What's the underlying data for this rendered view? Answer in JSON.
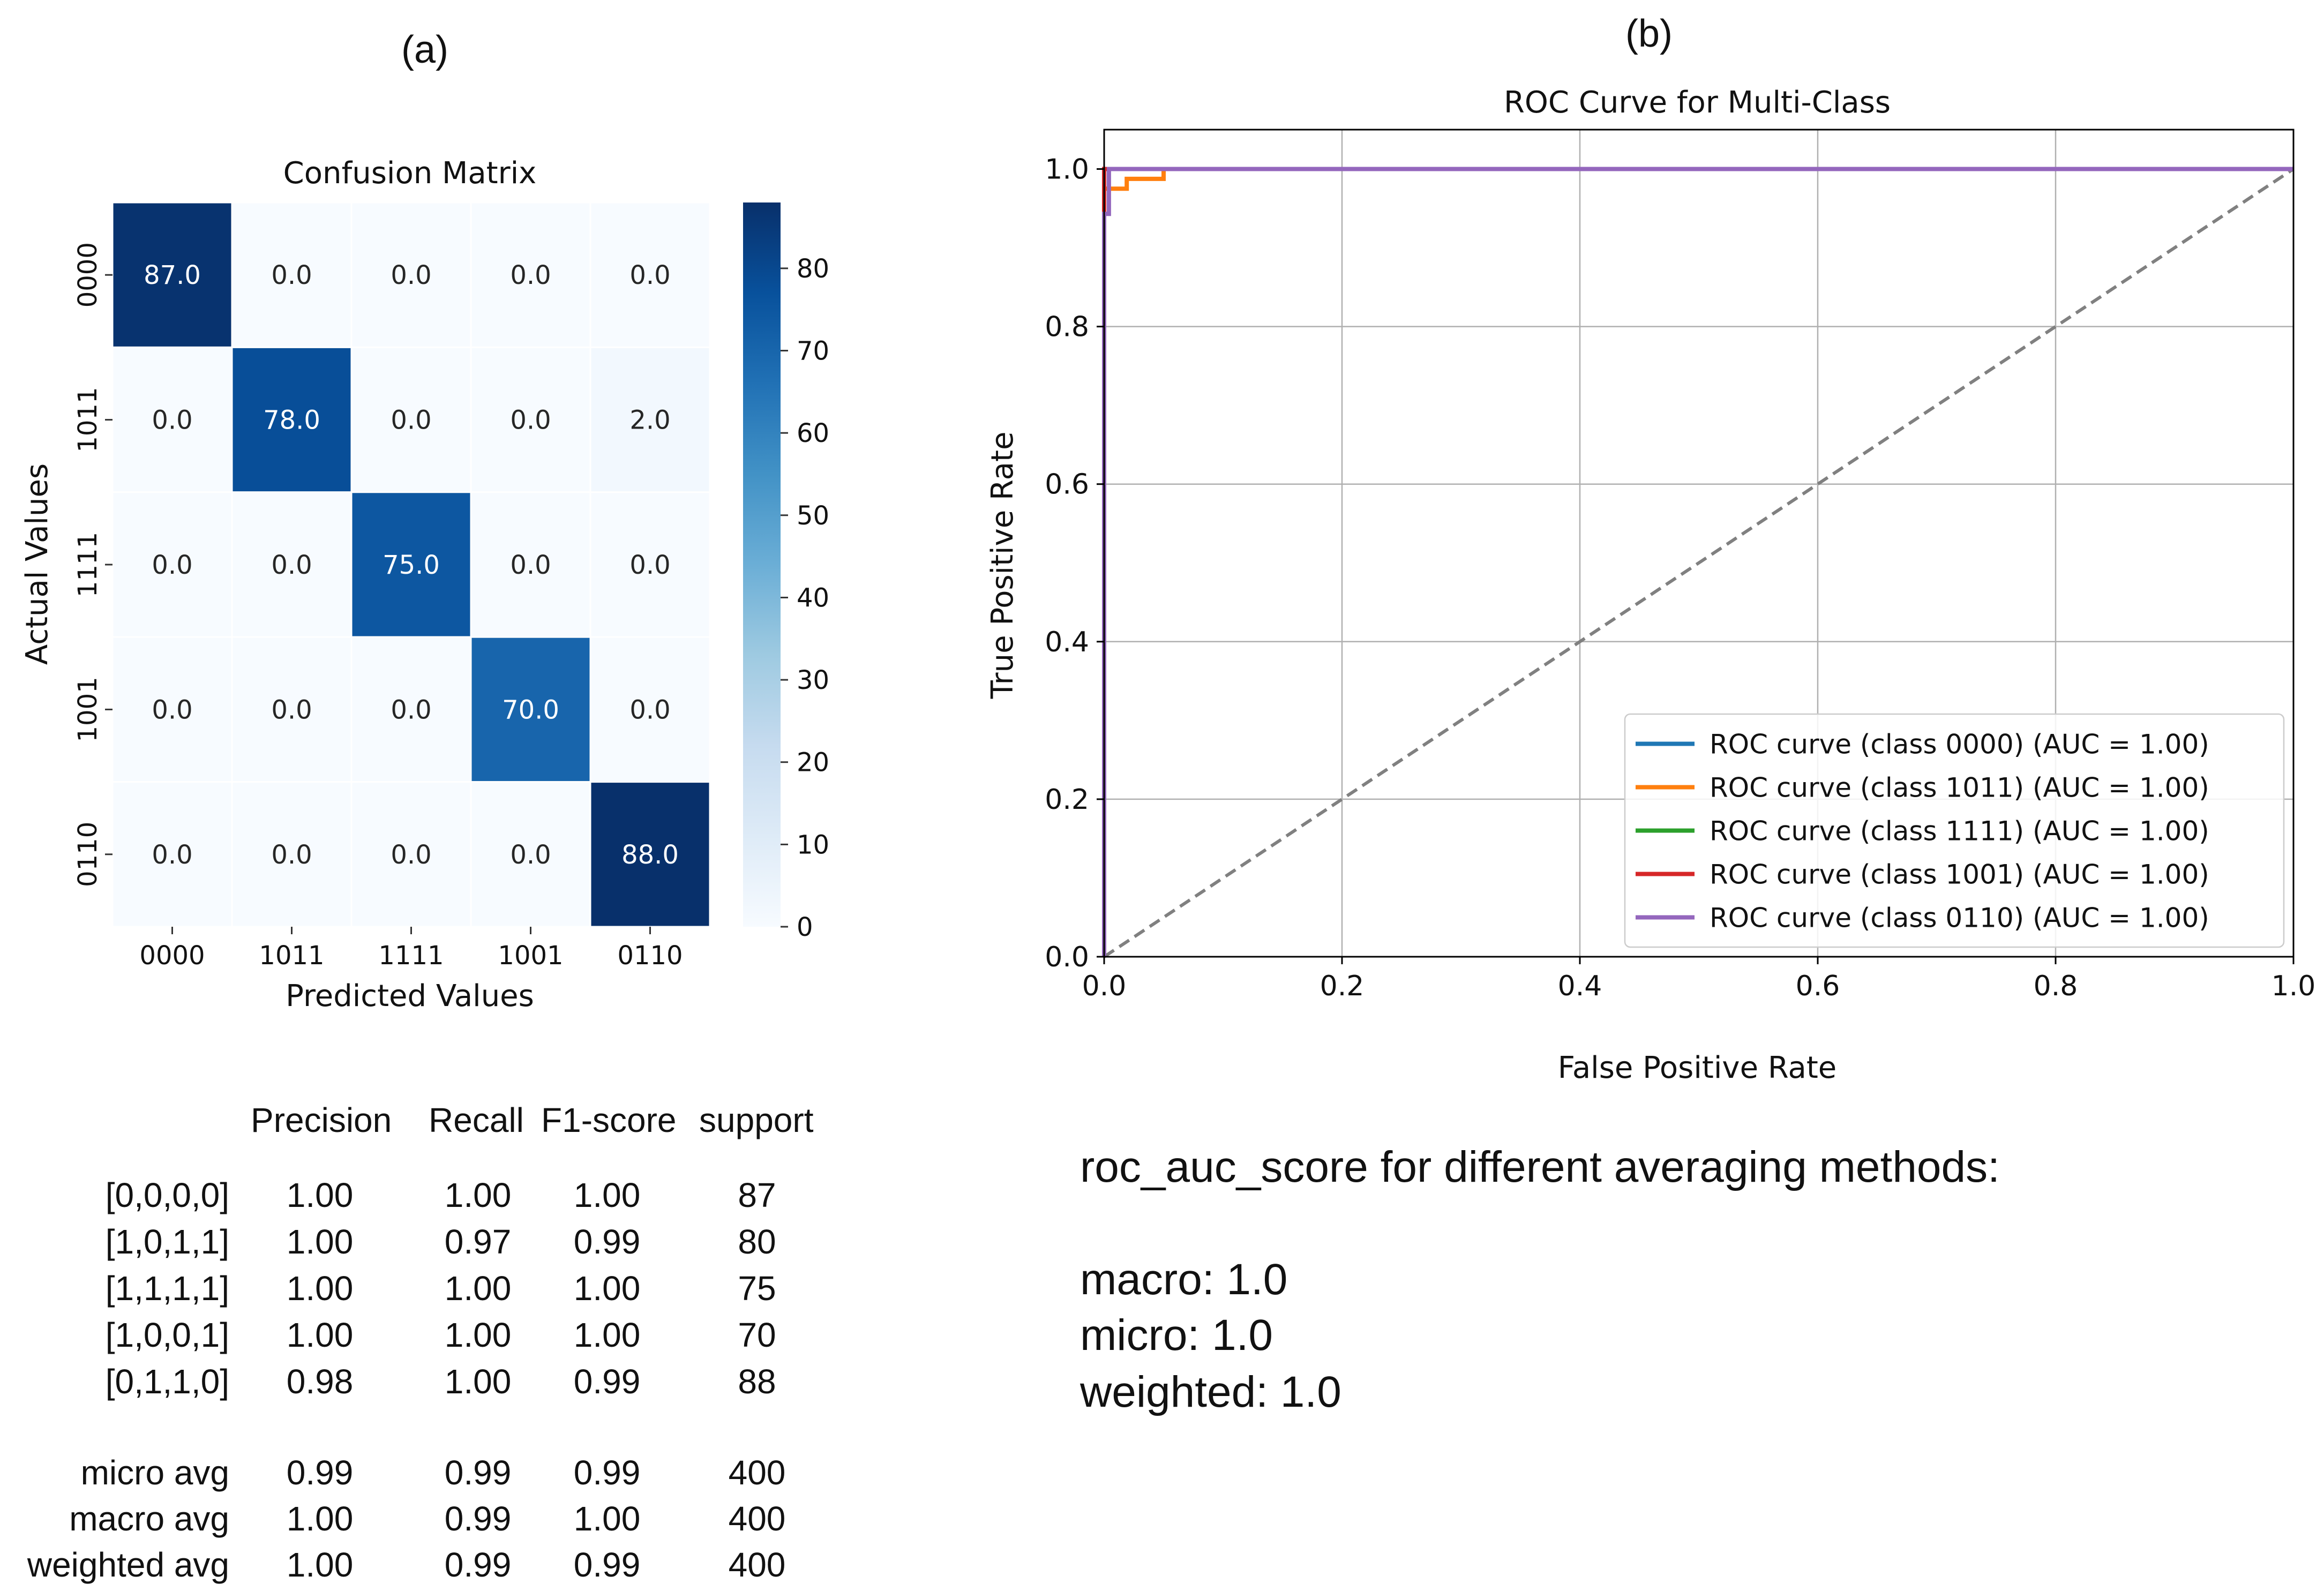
{
  "panel_a": {
    "label": "(a)",
    "classification_report": {
      "headers": [
        "Precision",
        "Recall",
        "F1-score",
        "support"
      ],
      "rows": [
        {
          "label": "[0,0,0,0]",
          "precision": "1.00",
          "recall": "1.00",
          "f1": "1.00",
          "support": "87"
        },
        {
          "label": "[1,0,1,1]",
          "precision": "1.00",
          "recall": "0.97",
          "f1": "0.99",
          "support": "80"
        },
        {
          "label": "[1,1,1,1]",
          "precision": "1.00",
          "recall": "1.00",
          "f1": "1.00",
          "support": "75"
        },
        {
          "label": "[1,0,0,1]",
          "precision": "1.00",
          "recall": "1.00",
          "f1": "1.00",
          "support": "70"
        },
        {
          "label": "[0,1,1,0]",
          "precision": "0.98",
          "recall": "1.00",
          "f1": "0.99",
          "support": "88"
        }
      ],
      "averages": [
        {
          "label": "micro avg",
          "precision": "0.99",
          "recall": "0.99",
          "f1": "0.99",
          "support": "400"
        },
        {
          "label": "macro avg",
          "precision": "1.00",
          "recall": "0.99",
          "f1": "1.00",
          "support": "400"
        },
        {
          "label": "weighted avg",
          "precision": "1.00",
          "recall": "0.99",
          "f1": "0.99",
          "support": "400"
        }
      ]
    }
  },
  "panel_b": {
    "label": "(b)",
    "roc_auc_text": {
      "heading": "roc_auc_score for different averaging methods:",
      "lines": [
        "macro: 1.0",
        "micro: 1.0",
        "weighted: 1.0"
      ]
    }
  },
  "chart_data": [
    {
      "type": "heatmap",
      "title": "Confusion Matrix",
      "xlabel": "Predicted Values",
      "ylabel": "Actual Values",
      "x_categories": [
        "0000",
        "1011",
        "1111",
        "1001",
        "0110"
      ],
      "y_categories": [
        "0000",
        "1011",
        "1111",
        "1001",
        "0110"
      ],
      "matrix": [
        [
          87,
          0,
          0,
          0,
          0
        ],
        [
          0,
          78,
          0,
          0,
          2
        ],
        [
          0,
          0,
          75,
          0,
          0
        ],
        [
          0,
          0,
          0,
          70,
          0
        ],
        [
          0,
          0,
          0,
          0,
          88
        ]
      ],
      "cell_labels": [
        [
          "87.0",
          "0.0",
          "0.0",
          "0.0",
          "0.0"
        ],
        [
          "0.0",
          "78.0",
          "0.0",
          "0.0",
          "2.0"
        ],
        [
          "0.0",
          "0.0",
          "75.0",
          "0.0",
          "0.0"
        ],
        [
          "0.0",
          "0.0",
          "0.0",
          "70.0",
          "0.0"
        ],
        [
          "0.0",
          "0.0",
          "0.0",
          "0.0",
          "88.0"
        ]
      ],
      "colorbar": {
        "min": 0,
        "max": 88,
        "ticks": [
          0,
          10,
          20,
          30,
          40,
          50,
          60,
          70,
          80
        ]
      },
      "colormap": [
        "#f7fbff",
        "#deebf7",
        "#c6dbef",
        "#9ecae1",
        "#6baed6",
        "#4292c6",
        "#2171b5",
        "#08519c",
        "#08306b"
      ]
    },
    {
      "type": "line",
      "title": "ROC Curve for Multi-Class",
      "xlabel": "False Positive Rate",
      "ylabel": "True Positive Rate",
      "xlim": [
        0,
        1
      ],
      "ylim": [
        0,
        1.05
      ],
      "xticks": [
        0.0,
        0.2,
        0.4,
        0.6,
        0.8,
        1.0
      ],
      "yticks": [
        0.0,
        0.2,
        0.4,
        0.6,
        0.8,
        1.0
      ],
      "grid": true,
      "legend_position": "lower right",
      "series": [
        {
          "name": "ROC curve (class 0000) (AUC = 1.00)",
          "color": "#1f77b4",
          "x": [
            0,
            0,
            1
          ],
          "y": [
            0,
            1,
            1
          ]
        },
        {
          "name": "ROC curve (class 1011) (AUC = 1.00)",
          "color": "#ff7f0e",
          "x": [
            0,
            0,
            0.004,
            0.004,
            0.019,
            0.019,
            0.05,
            0.05,
            1
          ],
          "y": [
            0,
            0.975,
            0.975,
            0.975,
            0.975,
            0.9875,
            0.9875,
            1,
            1
          ]
        },
        {
          "name": "ROC curve (class 1111) (AUC = 1.00)",
          "color": "#2ca02c",
          "x": [
            0,
            0,
            1
          ],
          "y": [
            0,
            1,
            1
          ]
        },
        {
          "name": "ROC curve (class 1001) (AUC = 1.00)",
          "color": "#d62728",
          "x": [
            0,
            0,
            1
          ],
          "y": [
            0,
            1,
            1
          ]
        },
        {
          "name": "ROC curve (class 0110) (AUC = 1.00)",
          "color": "#9467bd",
          "x": [
            0,
            0,
            0.004,
            0.004,
            1
          ],
          "y": [
            0,
            0.943,
            0.943,
            1,
            1
          ]
        }
      ],
      "reference_line": {
        "x": [
          0,
          1
        ],
        "y": [
          0,
          1
        ],
        "color": "#808080",
        "style": "dashed"
      }
    }
  ]
}
